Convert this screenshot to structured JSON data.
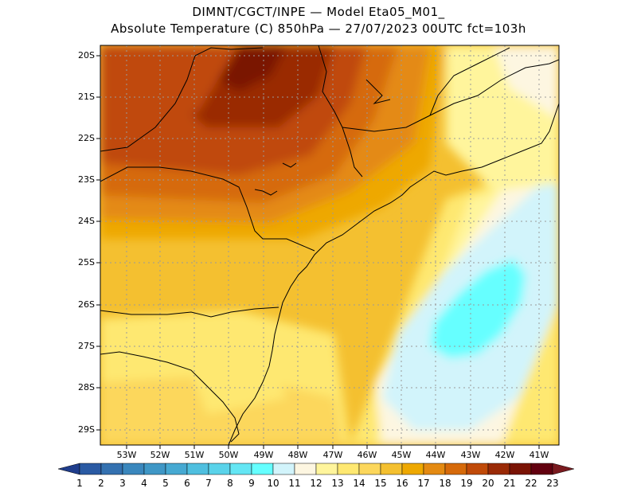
{
  "header": {
    "line1": "DIMNT/CGCT/INPE —  Model Eta05_M01_",
    "line2": "Absolute Temperature (C) 850hPa —  27/07/2023 00UTC fct=103h"
  },
  "axes": {
    "lat_labels": [
      "20S",
      "21S",
      "22S",
      "23S",
      "24S",
      "25S",
      "26S",
      "27S",
      "28S",
      "29S"
    ],
    "lon_labels": [
      "53W",
      "52W",
      "51W",
      "50W",
      "49W",
      "48W",
      "47W",
      "46W",
      "45W",
      "44W",
      "43W",
      "42W",
      "41W"
    ]
  },
  "colorbar": {
    "labels": [
      "1",
      "2",
      "3",
      "4",
      "5",
      "6",
      "7",
      "8",
      "9",
      "10",
      "11",
      "12",
      "13",
      "14",
      "15",
      "16",
      "17",
      "18",
      "19",
      "20",
      "21",
      "22",
      "23"
    ],
    "colors": [
      "#1f3d8c",
      "#2a5aa3",
      "#3471b0",
      "#3a87bd",
      "#3f97c6",
      "#46a9d2",
      "#4fbfdf",
      "#5ad3ea",
      "#64e6f4",
      "#66ffff",
      "#d2f4fb",
      "#fdf6e1",
      "#fff59c",
      "#fee871",
      "#fcd75c",
      "#f4c030",
      "#eea800",
      "#e48a12",
      "#d66a0a",
      "#c04a08",
      "#9a2a06",
      "#7a1304",
      "#62000f",
      "#7a1a1f"
    ]
  },
  "palette": {
    "bg": "#ffffff",
    "coast": "#000000",
    "grid": "#9a9a9a"
  }
}
